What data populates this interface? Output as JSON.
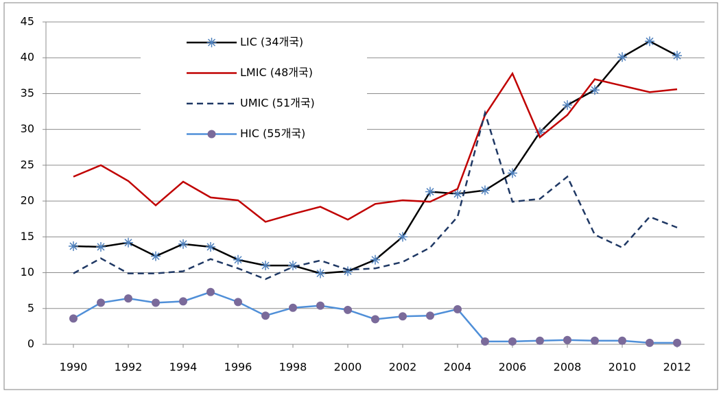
{
  "chart_data": {
    "type": "line",
    "x": [
      1990,
      1991,
      1992,
      1993,
      1994,
      1995,
      1996,
      1997,
      1998,
      1999,
      2000,
      2001,
      2002,
      2003,
      2004,
      2005,
      2006,
      2007,
      2008,
      2009,
      2010,
      2011,
      2012
    ],
    "xlim": [
      1989,
      2013
    ],
    "xticks": [
      1990,
      1992,
      1994,
      1996,
      1998,
      2000,
      2002,
      2004,
      2006,
      2008,
      2010,
      2012
    ],
    "ylim": [
      0,
      45
    ],
    "yticks": [
      0,
      5,
      10,
      15,
      20,
      25,
      30,
      35,
      40,
      45
    ],
    "grid": true,
    "legend": "upper left",
    "series": [
      {
        "name": "LIC (34개국)",
        "color": "#000000",
        "marker": "star",
        "marker_color": "#4f81bd",
        "dashed": false,
        "values": [
          13.7,
          13.6,
          14.2,
          12.3,
          14.0,
          13.6,
          11.8,
          11.0,
          11.0,
          9.9,
          10.2,
          11.8,
          15.0,
          21.3,
          21.0,
          21.5,
          23.9,
          29.6,
          33.4,
          35.5,
          40.1,
          42.3,
          40.3
        ]
      },
      {
        "name": "LMIC (48개국)",
        "color": "#c00000",
        "marker": "none",
        "dashed": false,
        "values": [
          23.4,
          25.0,
          22.8,
          19.4,
          22.7,
          20.5,
          20.1,
          17.1,
          18.2,
          19.2,
          17.4,
          19.6,
          20.1,
          19.9,
          21.7,
          32.0,
          37.8,
          28.9,
          32.0,
          37.0,
          36.1,
          35.2,
          35.6
        ]
      },
      {
        "name": "UMIC (51개국)",
        "color": "#1f3864",
        "marker": "none",
        "dashed": true,
        "values": [
          9.9,
          12.0,
          9.9,
          9.9,
          10.2,
          11.9,
          10.6,
          9.1,
          10.8,
          11.7,
          10.4,
          10.6,
          11.5,
          13.5,
          17.8,
          32.3,
          19.9,
          20.3,
          23.4,
          15.3,
          13.5,
          17.8,
          16.3
        ]
      },
      {
        "name": "HIC (55개국)",
        "color": "#4f8fd8",
        "marker": "circle",
        "marker_color": "#7a6a9a",
        "dashed": false,
        "values": [
          3.6,
          5.8,
          6.4,
          5.8,
          6.0,
          7.3,
          5.9,
          4.0,
          5.1,
          5.4,
          4.8,
          3.5,
          3.9,
          4.0,
          4.9,
          0.4,
          0.4,
          0.5,
          0.6,
          0.5,
          0.5,
          0.2,
          0.2
        ]
      }
    ]
  }
}
